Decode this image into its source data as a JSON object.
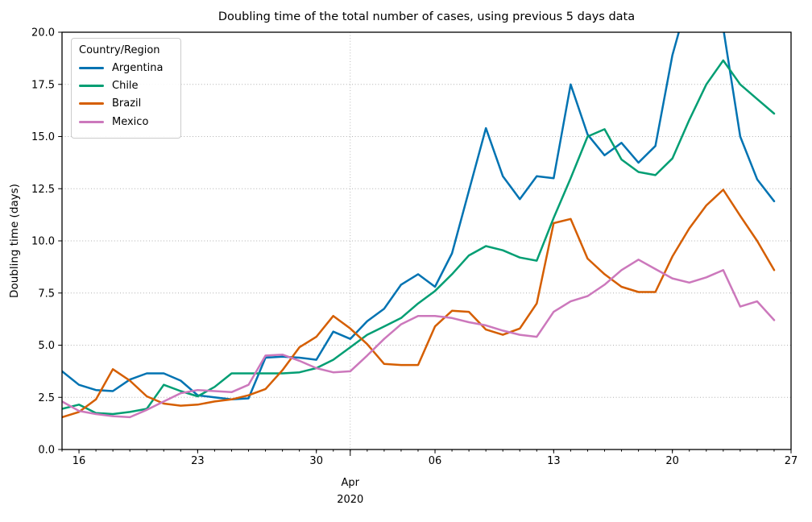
{
  "chart_data": {
    "type": "line",
    "title": "Doubling time of the total number of cases, using previous 5 days data",
    "ylabel": "Doubling time (days)",
    "xlabel_month": "Apr",
    "xlabel_year": "2020",
    "legend_title": "Country/Region",
    "legend_position": "upper left",
    "grid": {
      "horizontal": "dotted at every 2.5",
      "vertical": "dotted at month boundary Apr 1"
    },
    "ylim": [
      0,
      20
    ],
    "y_ticks": [
      "0.0",
      "2.5",
      "5.0",
      "7.5",
      "10.0",
      "12.5",
      "15.0",
      "17.5",
      "20.0"
    ],
    "x_range": {
      "start_date": "2020-03-15",
      "end_date": "2020-04-27",
      "interval": "daily",
      "n_points": 43
    },
    "x_major_ticks": [
      {
        "day_index": 1,
        "label": "16"
      },
      {
        "day_index": 8,
        "label": "23"
      },
      {
        "day_index": 15,
        "label": "30"
      },
      {
        "day_index": 22,
        "label": "06"
      },
      {
        "day_index": 29,
        "label": "13"
      },
      {
        "day_index": 36,
        "label": "20"
      },
      {
        "day_index": 43,
        "label": "27"
      }
    ],
    "x_month_boundary_index": 17,
    "x_minor_ticks": "daily",
    "clip_note": "Argentina exceeds 20 and is clipped at top between Apr 20 and Apr 23",
    "series": [
      {
        "name": "Argentina",
        "color": "#0173b2",
        "values": [
          3.75,
          3.1,
          2.85,
          2.8,
          3.35,
          3.65,
          3.65,
          3.3,
          2.6,
          2.5,
          2.4,
          2.45,
          4.4,
          4.45,
          4.4,
          4.3,
          5.65,
          5.3,
          6.15,
          6.75,
          7.9,
          8.4,
          7.8,
          9.4,
          12.4,
          15.4,
          13.1,
          12.0,
          13.1,
          13.0,
          17.5,
          15.1,
          14.1,
          14.7,
          13.75,
          14.55,
          18.9,
          21.8,
          23.5,
          20.2,
          15.0,
          12.95,
          11.9
        ]
      },
      {
        "name": "Chile",
        "color": "#029e73",
        "values": [
          1.95,
          2.15,
          1.75,
          1.7,
          1.8,
          1.95,
          3.1,
          2.8,
          2.55,
          3.0,
          3.65,
          3.65,
          3.65,
          3.65,
          3.7,
          3.9,
          4.3,
          4.9,
          5.5,
          5.9,
          6.3,
          7.0,
          7.6,
          8.4,
          9.3,
          9.75,
          9.55,
          9.2,
          9.05,
          11.1,
          13.0,
          15.0,
          15.35,
          13.9,
          13.3,
          13.15,
          13.95,
          15.8,
          17.5,
          18.65,
          17.5,
          16.8,
          16.1
        ]
      },
      {
        "name": "Brazil",
        "color": "#d55e00",
        "values": [
          1.55,
          1.8,
          2.4,
          3.85,
          3.3,
          2.55,
          2.2,
          2.1,
          2.15,
          2.3,
          2.4,
          2.6,
          2.9,
          3.8,
          4.9,
          5.4,
          6.4,
          5.8,
          5.05,
          4.1,
          4.05,
          4.05,
          5.9,
          6.65,
          6.6,
          5.75,
          5.5,
          5.8,
          7.0,
          10.85,
          11.05,
          9.15,
          8.4,
          7.8,
          7.55,
          7.55,
          9.25,
          10.6,
          11.7,
          12.45,
          11.2,
          10.0,
          8.6
        ]
      },
      {
        "name": "Mexico",
        "color": "#cc78bc",
        "values": [
          2.3,
          1.85,
          1.7,
          1.6,
          1.55,
          1.9,
          2.3,
          2.7,
          2.85,
          2.8,
          2.75,
          3.1,
          4.5,
          4.55,
          4.25,
          3.9,
          3.7,
          3.75,
          4.5,
          5.3,
          6.0,
          6.4,
          6.4,
          6.3,
          6.1,
          5.95,
          5.7,
          5.5,
          5.4,
          6.6,
          7.1,
          7.35,
          7.9,
          8.6,
          9.1,
          8.65,
          8.2,
          8.0,
          8.25,
          8.6,
          6.85,
          7.1,
          6.2
        ]
      }
    ]
  }
}
